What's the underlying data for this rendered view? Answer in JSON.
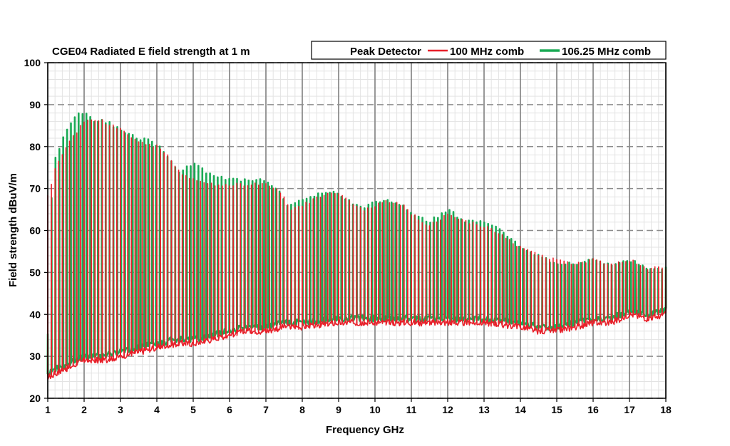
{
  "chart_data": {
    "type": "line",
    "title": "CGE04 Radiated E field strength at 1 m",
    "xlabel": "Frequency GHz",
    "ylabel": "Field strength dBuV/m",
    "xlim": [
      1,
      18
    ],
    "ylim": [
      20,
      100
    ],
    "x_ticks": [
      1,
      2,
      3,
      4,
      5,
      6,
      7,
      8,
      9,
      10,
      11,
      12,
      13,
      14,
      15,
      16,
      17,
      18
    ],
    "y_ticks": [
      20,
      30,
      40,
      50,
      60,
      70,
      80,
      90,
      100
    ],
    "grid": true,
    "legend_position": "top-right",
    "legend_title": "Peak Detector",
    "series": [
      {
        "name": "100 MHz comb",
        "color": "#e8202a",
        "spacing_ghz": 0.1,
        "peak_envelope": {
          "x": [
            1.0,
            1.1,
            1.2,
            1.5,
            2.0,
            2.3,
            2.5,
            3.0,
            3.5,
            4.0,
            4.3,
            4.6,
            5.0,
            5.5,
            6.0,
            6.5,
            7.0,
            7.3,
            7.5,
            7.7,
            8.0,
            8.5,
            8.9,
            9.3,
            9.7,
            10.0,
            10.4,
            10.8,
            11.0,
            11.5,
            12.0,
            12.5,
            13.0,
            13.5,
            14.0,
            14.5,
            15.0,
            15.5,
            16.0,
            16.5,
            17.0,
            17.5,
            18.0
          ],
          "y": [
            68,
            71,
            75,
            80,
            86,
            86,
            86,
            84,
            81,
            80,
            78,
            74,
            72,
            71,
            71,
            71,
            71,
            70,
            68,
            65,
            66,
            68,
            69,
            67,
            65,
            66,
            67,
            66,
            64,
            61,
            64,
            62,
            61,
            59,
            56,
            54,
            53,
            52,
            53,
            52,
            53,
            51,
            51
          ]
        },
        "floor": {
          "x": [
            1.0,
            1.5,
            2.0,
            2.5,
            3.0,
            3.5,
            4.0,
            4.5,
            5.0,
            5.5,
            6.0,
            6.5,
            7.0,
            7.5,
            8.0,
            9.0,
            10.0,
            11.0,
            12.0,
            13.0,
            14.0,
            14.5,
            15.0,
            15.5,
            16.0,
            16.5,
            17.0,
            17.5,
            18.0
          ],
          "y": [
            25,
            27,
            29,
            29,
            30,
            31,
            32,
            33,
            33,
            34,
            35,
            36,
            36,
            37,
            37,
            38,
            38,
            38,
            38,
            38,
            37,
            36,
            36,
            37,
            38,
            38,
            40,
            39,
            40
          ]
        }
      },
      {
        "name": "106.25 MHz comb",
        "color": "#1aaa55",
        "spacing_ghz": 0.10625,
        "peak_envelope": {
          "x": [
            1.0,
            1.1,
            1.2,
            1.5,
            1.8,
            2.0,
            2.3,
            2.6,
            3.0,
            3.5,
            3.9,
            4.2,
            4.6,
            5.0,
            5.5,
            6.0,
            6.5,
            7.0,
            7.3,
            7.6,
            8.0,
            8.5,
            8.9,
            9.3,
            9.7,
            10.0,
            10.4,
            10.8,
            11.0,
            11.5,
            12.0,
            12.5,
            13.0,
            13.5,
            14.0,
            14.5,
            15.0,
            15.5,
            16.0,
            16.5,
            17.0,
            17.5,
            18.0
          ],
          "y": [
            35,
            67,
            77,
            84,
            88,
            88,
            86,
            86,
            84,
            82,
            81,
            79,
            74,
            76,
            73,
            72,
            72,
            72,
            70,
            66,
            67,
            69,
            69,
            67,
            65,
            67,
            67,
            66,
            64,
            62,
            65,
            62,
            62,
            60,
            56,
            54,
            52,
            52,
            53,
            52,
            53,
            51,
            51
          ]
        },
        "floor": {
          "x": [
            1.0,
            1.5,
            2.0,
            2.5,
            3.0,
            3.5,
            4.0,
            4.5,
            5.0,
            5.5,
            6.0,
            6.5,
            7.0,
            7.5,
            8.0,
            9.0,
            10.0,
            11.0,
            12.0,
            13.0,
            14.0,
            14.5,
            15.0,
            15.5,
            16.0,
            16.5,
            17.0,
            17.5,
            18.0
          ],
          "y": [
            26,
            28,
            30,
            30,
            31,
            32,
            33,
            34,
            34,
            35,
            36,
            37,
            37,
            38,
            38,
            39,
            39,
            39,
            39,
            39,
            38,
            37,
            37,
            38,
            39,
            39,
            41,
            40,
            41
          ]
        }
      }
    ]
  }
}
